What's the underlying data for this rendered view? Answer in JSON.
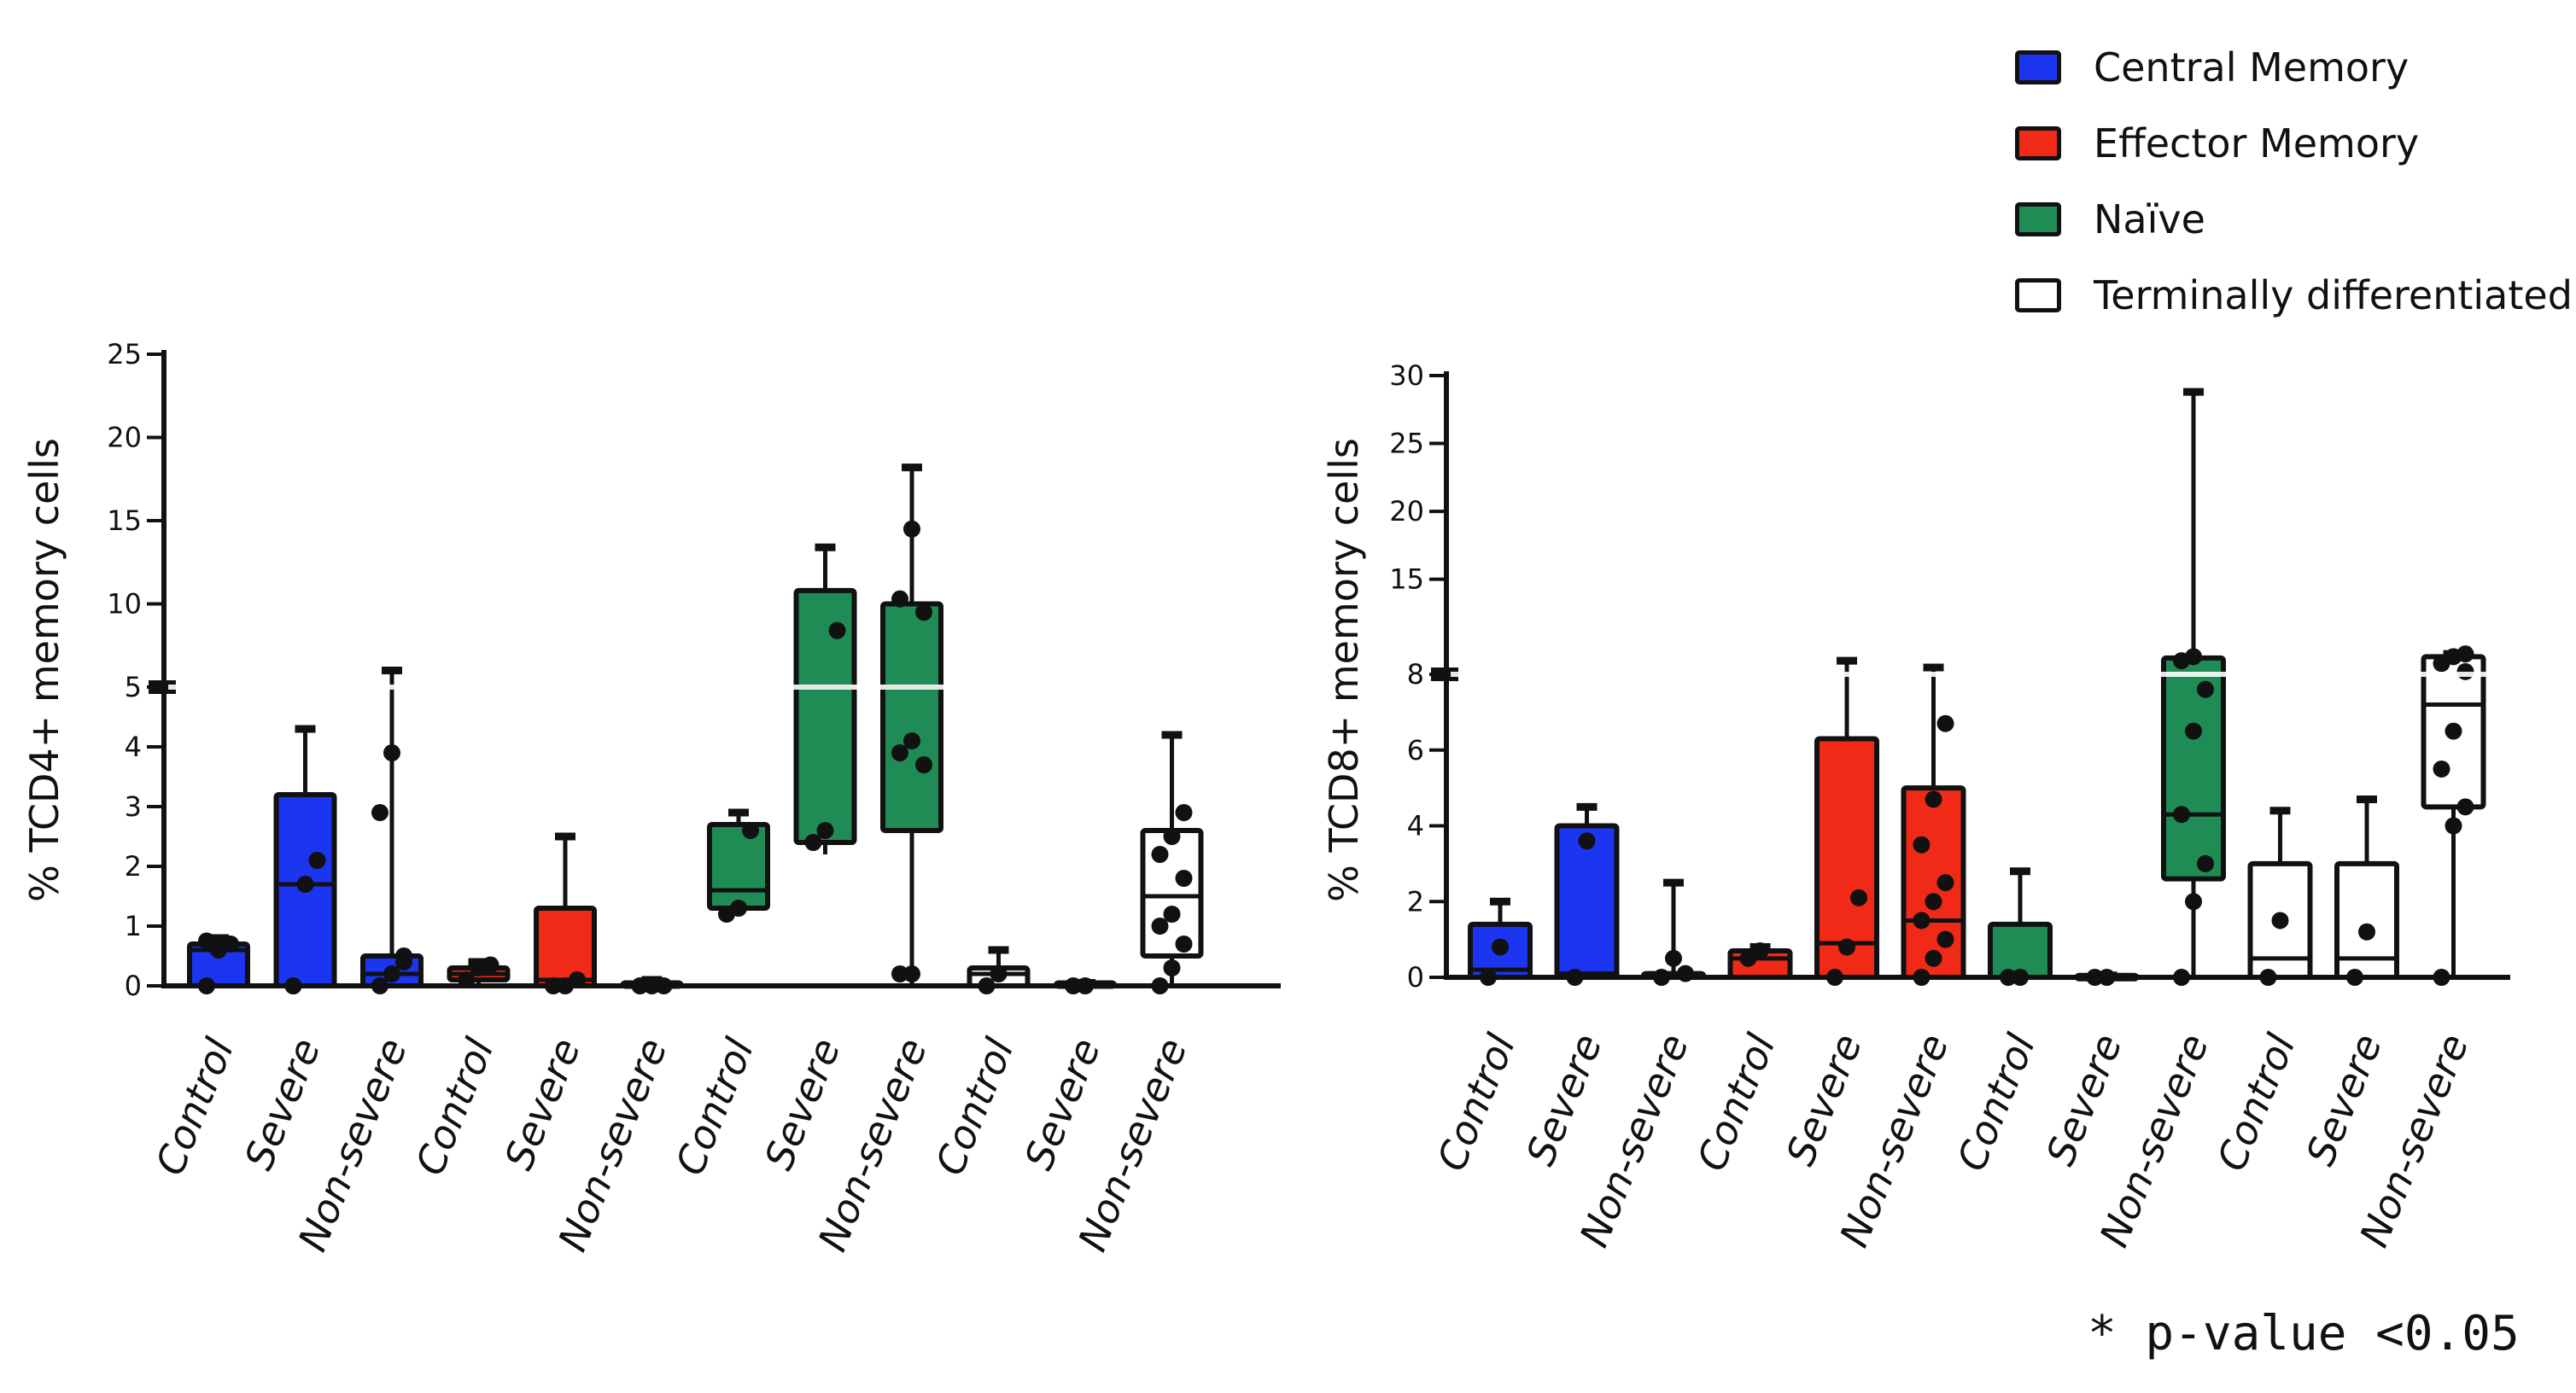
{
  "legend": {
    "items": [
      {
        "label": "Central Memory",
        "color": "#1b35f0"
      },
      {
        "label": "Effector Memory",
        "color": "#f02a17"
      },
      {
        "label": "Naïve",
        "color": "#1f8c55"
      },
      {
        "label": "Terminally differentiated",
        "color": "#ffffff"
      }
    ]
  },
  "footnote": "* p-value <0.05",
  "chart_data": [
    {
      "type": "box",
      "ylabel": "% TCD4+ memory cells",
      "axis_break": 5,
      "lower_ticks": [
        0,
        1,
        2,
        3,
        4,
        5
      ],
      "upper_ticks": [
        10,
        15,
        20,
        25
      ],
      "ylim": [
        0,
        25
      ],
      "categories": [
        "Control",
        "Severe",
        "Non-severe",
        "Control",
        "Severe",
        "Non-severe",
        "Control",
        "Severe",
        "Non-severe",
        "Control",
        "Severe",
        "Non-severe"
      ],
      "series": [
        {
          "name": "Central Memory",
          "color": "#1b35f0",
          "groups": [
            {
              "category": "Control",
              "min": 0,
              "q1": 0,
              "median": 0.6,
              "q3": 0.7,
              "max": 0.8,
              "points": [
                0,
                0.6,
                0.7,
                0.75
              ]
            },
            {
              "category": "Severe",
              "min": 0,
              "q1": 0,
              "median": 1.7,
              "q3": 3.2,
              "max": 4.3,
              "points": [
                0,
                1.7,
                2.1,
                0
              ]
            },
            {
              "category": "Non-severe",
              "min": 0,
              "q1": 0,
              "median": 0.2,
              "q3": 0.5,
              "max": 6,
              "points": [
                0,
                0.2,
                0.4,
                2.9,
                3.9,
                0.5
              ]
            }
          ]
        },
        {
          "name": "Effector Memory",
          "color": "#f02a17",
          "groups": [
            {
              "category": "Control",
              "min": 0,
              "q1": 0.1,
              "median": 0.2,
              "q3": 0.3,
              "max": 0.4,
              "points": [
                0.1,
                0.3,
                0.35
              ]
            },
            {
              "category": "Severe",
              "min": 0,
              "q1": 0,
              "median": 0.1,
              "q3": 1.3,
              "max": 2.5,
              "points": [
                0,
                0,
                0.1
              ]
            },
            {
              "category": "Non-severe",
              "min": 0,
              "q1": 0,
              "median": 0,
              "q3": 0.05,
              "max": 0.1,
              "points": [
                0,
                0,
                0
              ]
            }
          ]
        },
        {
          "name": "Naïve",
          "color": "#1f8c55",
          "groups": [
            {
              "category": "Control",
              "min": 1.2,
              "q1": 1.3,
              "median": 1.6,
              "q3": 2.7,
              "max": 2.9,
              "points": [
                1.2,
                1.3,
                2.6
              ]
            },
            {
              "category": "Severe",
              "min": 2.2,
              "q1": 2.4,
              "median": 5,
              "q3": 10.8,
              "max": 13.4,
              "points": [
                2.4,
                2.6,
                8.4
              ]
            },
            {
              "category": "Non-severe",
              "min": 0,
              "q1": 2.6,
              "median": 5,
              "q3": 10,
              "max": 18.2,
              "points": [
                0.2,
                0.2,
                3.7,
                3.9,
                4.1,
                9.5,
                10.3,
                14.5
              ]
            }
          ]
        },
        {
          "name": "Terminally differentiated",
          "color": "#ffffff",
          "groups": [
            {
              "category": "Control",
              "min": 0,
              "q1": 0,
              "median": 0.2,
              "q3": 0.3,
              "max": 0.6,
              "points": [
                0,
                0.2
              ]
            },
            {
              "category": "Severe",
              "min": 0,
              "q1": 0,
              "median": 0,
              "q3": 0.05,
              "max": 0.05,
              "points": [
                0,
                0
              ]
            },
            {
              "category": "Non-severe",
              "min": 0,
              "q1": 0.5,
              "median": 1.5,
              "q3": 2.6,
              "max": 4.2,
              "points": [
                0,
                0.3,
                0.7,
                1.0,
                1.2,
                1.8,
                2.2,
                2.5,
                2.9
              ]
            }
          ]
        }
      ]
    },
    {
      "type": "box",
      "ylabel": "% TCD8+ memory cells",
      "axis_break": 8,
      "lower_ticks": [
        0,
        2,
        4,
        6,
        8
      ],
      "upper_ticks": [
        15,
        20,
        25,
        30
      ],
      "ylim": [
        0,
        30
      ],
      "categories": [
        "Control",
        "Severe",
        "Non-severe",
        "Control",
        "Severe",
        "Non-severe",
        "Control",
        "Severe",
        "Non-severe",
        "Control",
        "Severe",
        "Non-severe"
      ],
      "series": [
        {
          "name": "Central Memory",
          "color": "#1b35f0",
          "groups": [
            {
              "category": "Control",
              "min": 0,
              "q1": 0,
              "median": 0.2,
              "q3": 1.4,
              "max": 2,
              "points": [
                0,
                0.8
              ]
            },
            {
              "category": "Severe",
              "min": 0,
              "q1": 0,
              "median": 0.1,
              "q3": 4,
              "max": 4.5,
              "points": [
                0,
                3.6
              ]
            },
            {
              "category": "Non-severe",
              "min": 0,
              "q1": 0,
              "median": 0,
              "q3": 0.1,
              "max": 2.5,
              "points": [
                0,
                0.5,
                0.1
              ]
            }
          ]
        },
        {
          "name": "Effector Memory",
          "color": "#f02a17",
          "groups": [
            {
              "category": "Control",
              "min": 0,
              "q1": 0,
              "median": 0.5,
              "q3": 0.7,
              "max": 0.8,
              "points": [
                0.5,
                0.7
              ]
            },
            {
              "category": "Severe",
              "min": 0,
              "q1": 0,
              "median": 0.9,
              "q3": 6.3,
              "max": 9,
              "points": [
                0,
                0.8,
                2.1
              ]
            },
            {
              "category": "Non-severe",
              "min": 0,
              "q1": 0,
              "median": 1.5,
              "q3": 5,
              "max": 8.5,
              "points": [
                0,
                0.5,
                1.0,
                1.5,
                2.0,
                2.5,
                3.5,
                4.7,
                6.7
              ]
            }
          ]
        },
        {
          "name": "Naïve",
          "color": "#1f8c55",
          "groups": [
            {
              "category": "Control",
              "min": 0,
              "q1": 0,
              "median": 0,
              "q3": 1.4,
              "max": 2.8,
              "points": [
                0,
                0
              ]
            },
            {
              "category": "Severe",
              "min": 0,
              "q1": 0,
              "median": 0,
              "q3": 0.05,
              "max": 0.05,
              "points": [
                0,
                0
              ]
            },
            {
              "category": "Non-severe",
              "min": 0,
              "q1": 2.6,
              "median": 4.3,
              "q3": 9.2,
              "max": 28.8,
              "points": [
                0,
                2.0,
                3.0,
                4.3,
                6.5,
                7.6,
                9.0,
                9.3
              ]
            }
          ]
        },
        {
          "name": "Terminally differentiated",
          "color": "#ffffff",
          "groups": [
            {
              "category": "Control",
              "min": 0,
              "q1": 0,
              "median": 0.5,
              "q3": 3,
              "max": 4.4,
              "points": [
                0,
                1.5
              ]
            },
            {
              "category": "Severe",
              "min": 0,
              "q1": 0,
              "median": 0.5,
              "q3": 3,
              "max": 4.7,
              "points": [
                0,
                1.2
              ]
            },
            {
              "category": "Non-severe",
              "min": 0,
              "q1": 4.5,
              "median": 7.2,
              "q3": 9.3,
              "max": 9.5,
              "points": [
                0,
                4.0,
                4.5,
                5.5,
                6.5,
                8.2,
                8.8,
                9.3,
                9.5
              ]
            }
          ]
        }
      ]
    }
  ]
}
